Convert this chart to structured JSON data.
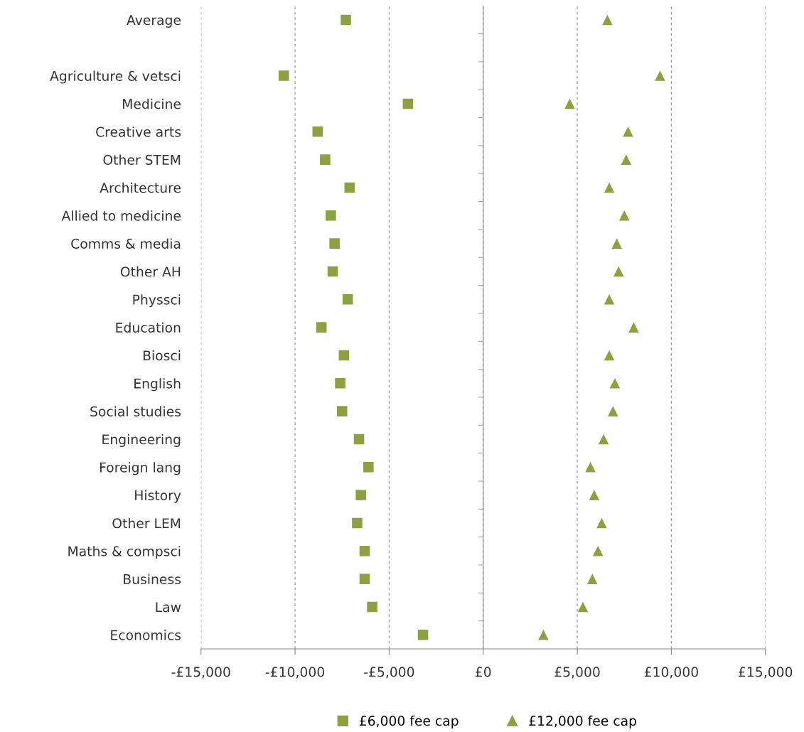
{
  "chart_data": {
    "type": "scatter",
    "orientation": "horizontal",
    "categories": [
      "Average",
      null,
      "Agriculture & vetsci",
      "Medicine",
      "Creative arts",
      "Other STEM",
      "Architecture",
      "Allied to medicine",
      "Comms & media",
      "Other AH",
      "Physsci",
      "Education",
      "Biosci",
      "English",
      "Social studies",
      "Engineering",
      "Foreign lang",
      "History",
      "Other LEM",
      "Maths & compsci",
      "Business",
      "Law",
      "Economics"
    ],
    "series": [
      {
        "name": "£6,000 fee cap",
        "color": "#8ca142",
        "marker": "square",
        "values": [
          -7300,
          null,
          -10600,
          -4000,
          -8800,
          -8400,
          -7100,
          -8100,
          -7900,
          -8000,
          -7200,
          -8600,
          -7400,
          -7600,
          -7500,
          -6600,
          -6100,
          -6500,
          -6700,
          -6300,
          -6300,
          -5900,
          -3200
        ]
      },
      {
        "name": "£12,000 fee cap",
        "color": "#8ca142",
        "marker": "triangle",
        "values": [
          6600,
          null,
          9400,
          4600,
          7700,
          7600,
          6700,
          7500,
          7100,
          7200,
          6700,
          8000,
          6700,
          7000,
          6900,
          6400,
          5700,
          5900,
          6300,
          6100,
          5800,
          5300,
          3200
        ]
      }
    ],
    "xlim": [
      -15000,
      15000
    ],
    "xticks": [
      {
        "value": -15000,
        "label": "-£15,000"
      },
      {
        "value": -10000,
        "label": "-£10,000"
      },
      {
        "value": -5000,
        "label": "-£5,000"
      },
      {
        "value": 0,
        "label": "£0"
      },
      {
        "value": 5000,
        "label": "£5,000"
      },
      {
        "value": 10000,
        "label": "£10,000"
      },
      {
        "value": 15000,
        "label": "£15,000"
      }
    ],
    "grid": "x",
    "legend": "bottom"
  }
}
